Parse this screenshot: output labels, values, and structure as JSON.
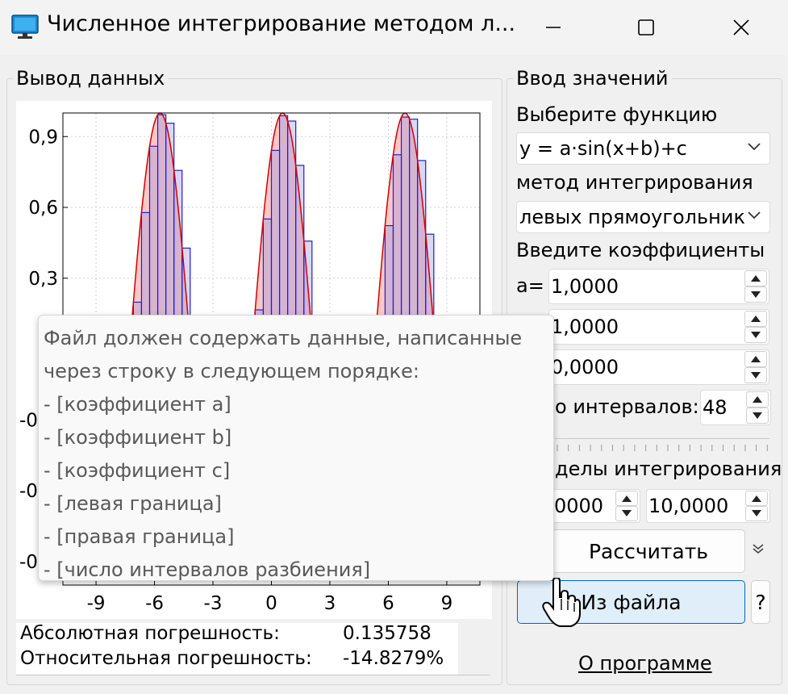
{
  "window": {
    "title": "Численное интегрирование методом л...",
    "buttons": [
      "minimize",
      "maximize",
      "close"
    ]
  },
  "output_group": {
    "title": "Вывод данных",
    "abs_error_label": "Абсолютная погрешность:",
    "abs_error_value": "0.135758",
    "rel_error_label": "Относительная погрешность:",
    "rel_error_value": "-14.8279%"
  },
  "input_group": {
    "title": "Ввод значений",
    "function_label": "Выберите функцию",
    "function_selected": "y = a·sin(x+b)+c",
    "method_label": "метод интегрирования",
    "method_selected": "левых прямоугольник",
    "coef_label": "Введите коэффициенты",
    "coef_a_label": "a=",
    "coef_a": "1,0000",
    "coef_b": "1,0000",
    "coef_c": "0,0000",
    "intervals_label": "о интервалов:",
    "intervals": "48",
    "limits_label": "делы интегрирования",
    "limit_left": "0000",
    "limit_right": "10,0000",
    "calc_button": "Рассчитать",
    "file_button": "Из файла",
    "help_button": "?",
    "about_link": "О программе"
  },
  "tooltip": {
    "lines": [
      "Файл должен содержать данные, написанные",
      "через строку в следующем порядке:",
      "- [коэффициент a]",
      "- [коэффициент b]",
      "- [коэффициент c]",
      "- [левая граница]",
      "- [правая граница]",
      "- [число интервалов разбиения]"
    ]
  },
  "chart_data": {
    "type": "area",
    "function": "y = a·sin(x+b)+c",
    "params": {
      "a": 1.0,
      "b": 1.0,
      "c": 0.0
    },
    "xlim": [
      -10.7,
      10.7
    ],
    "ylim": [
      -1.0,
      1.0
    ],
    "x_ticks": [
      "-9",
      "-6",
      "-3",
      "0",
      "3",
      "6",
      "9"
    ],
    "y_ticks": [
      "0,9",
      "0,6",
      "0,3"
    ],
    "y_ticks_partial": [
      "-0",
      "-0",
      "-0"
    ],
    "integration_range": [
      -10,
      10
    ],
    "intervals": 48,
    "method": "left rectangles",
    "grid": true,
    "colors": {
      "curve": "#d40000",
      "curve_fill": "#f9c8c8",
      "rect_stroke": "#1f1fd0",
      "rect_fill": "rgba(150,140,220,0.35)"
    }
  }
}
